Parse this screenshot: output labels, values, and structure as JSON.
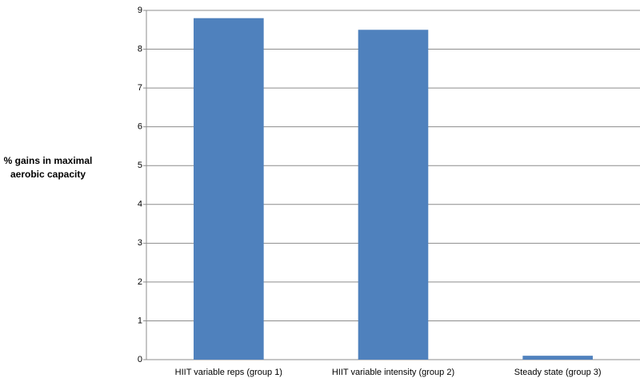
{
  "chart_data": {
    "type": "bar",
    "y_label": "% gains in maximal aerobic capacity",
    "categories": [
      "HIIT variable reps (group 1)",
      "HIIT variable intensity (group 2)",
      "Steady state (group 3)"
    ],
    "values": [
      8.8,
      8.5,
      0.1
    ],
    "color": "#4f81bd",
    "ylim": [
      0,
      9
    ],
    "yticks": [
      0,
      1,
      2,
      3,
      4,
      5,
      6,
      7,
      8,
      9
    ],
    "grid": true
  }
}
